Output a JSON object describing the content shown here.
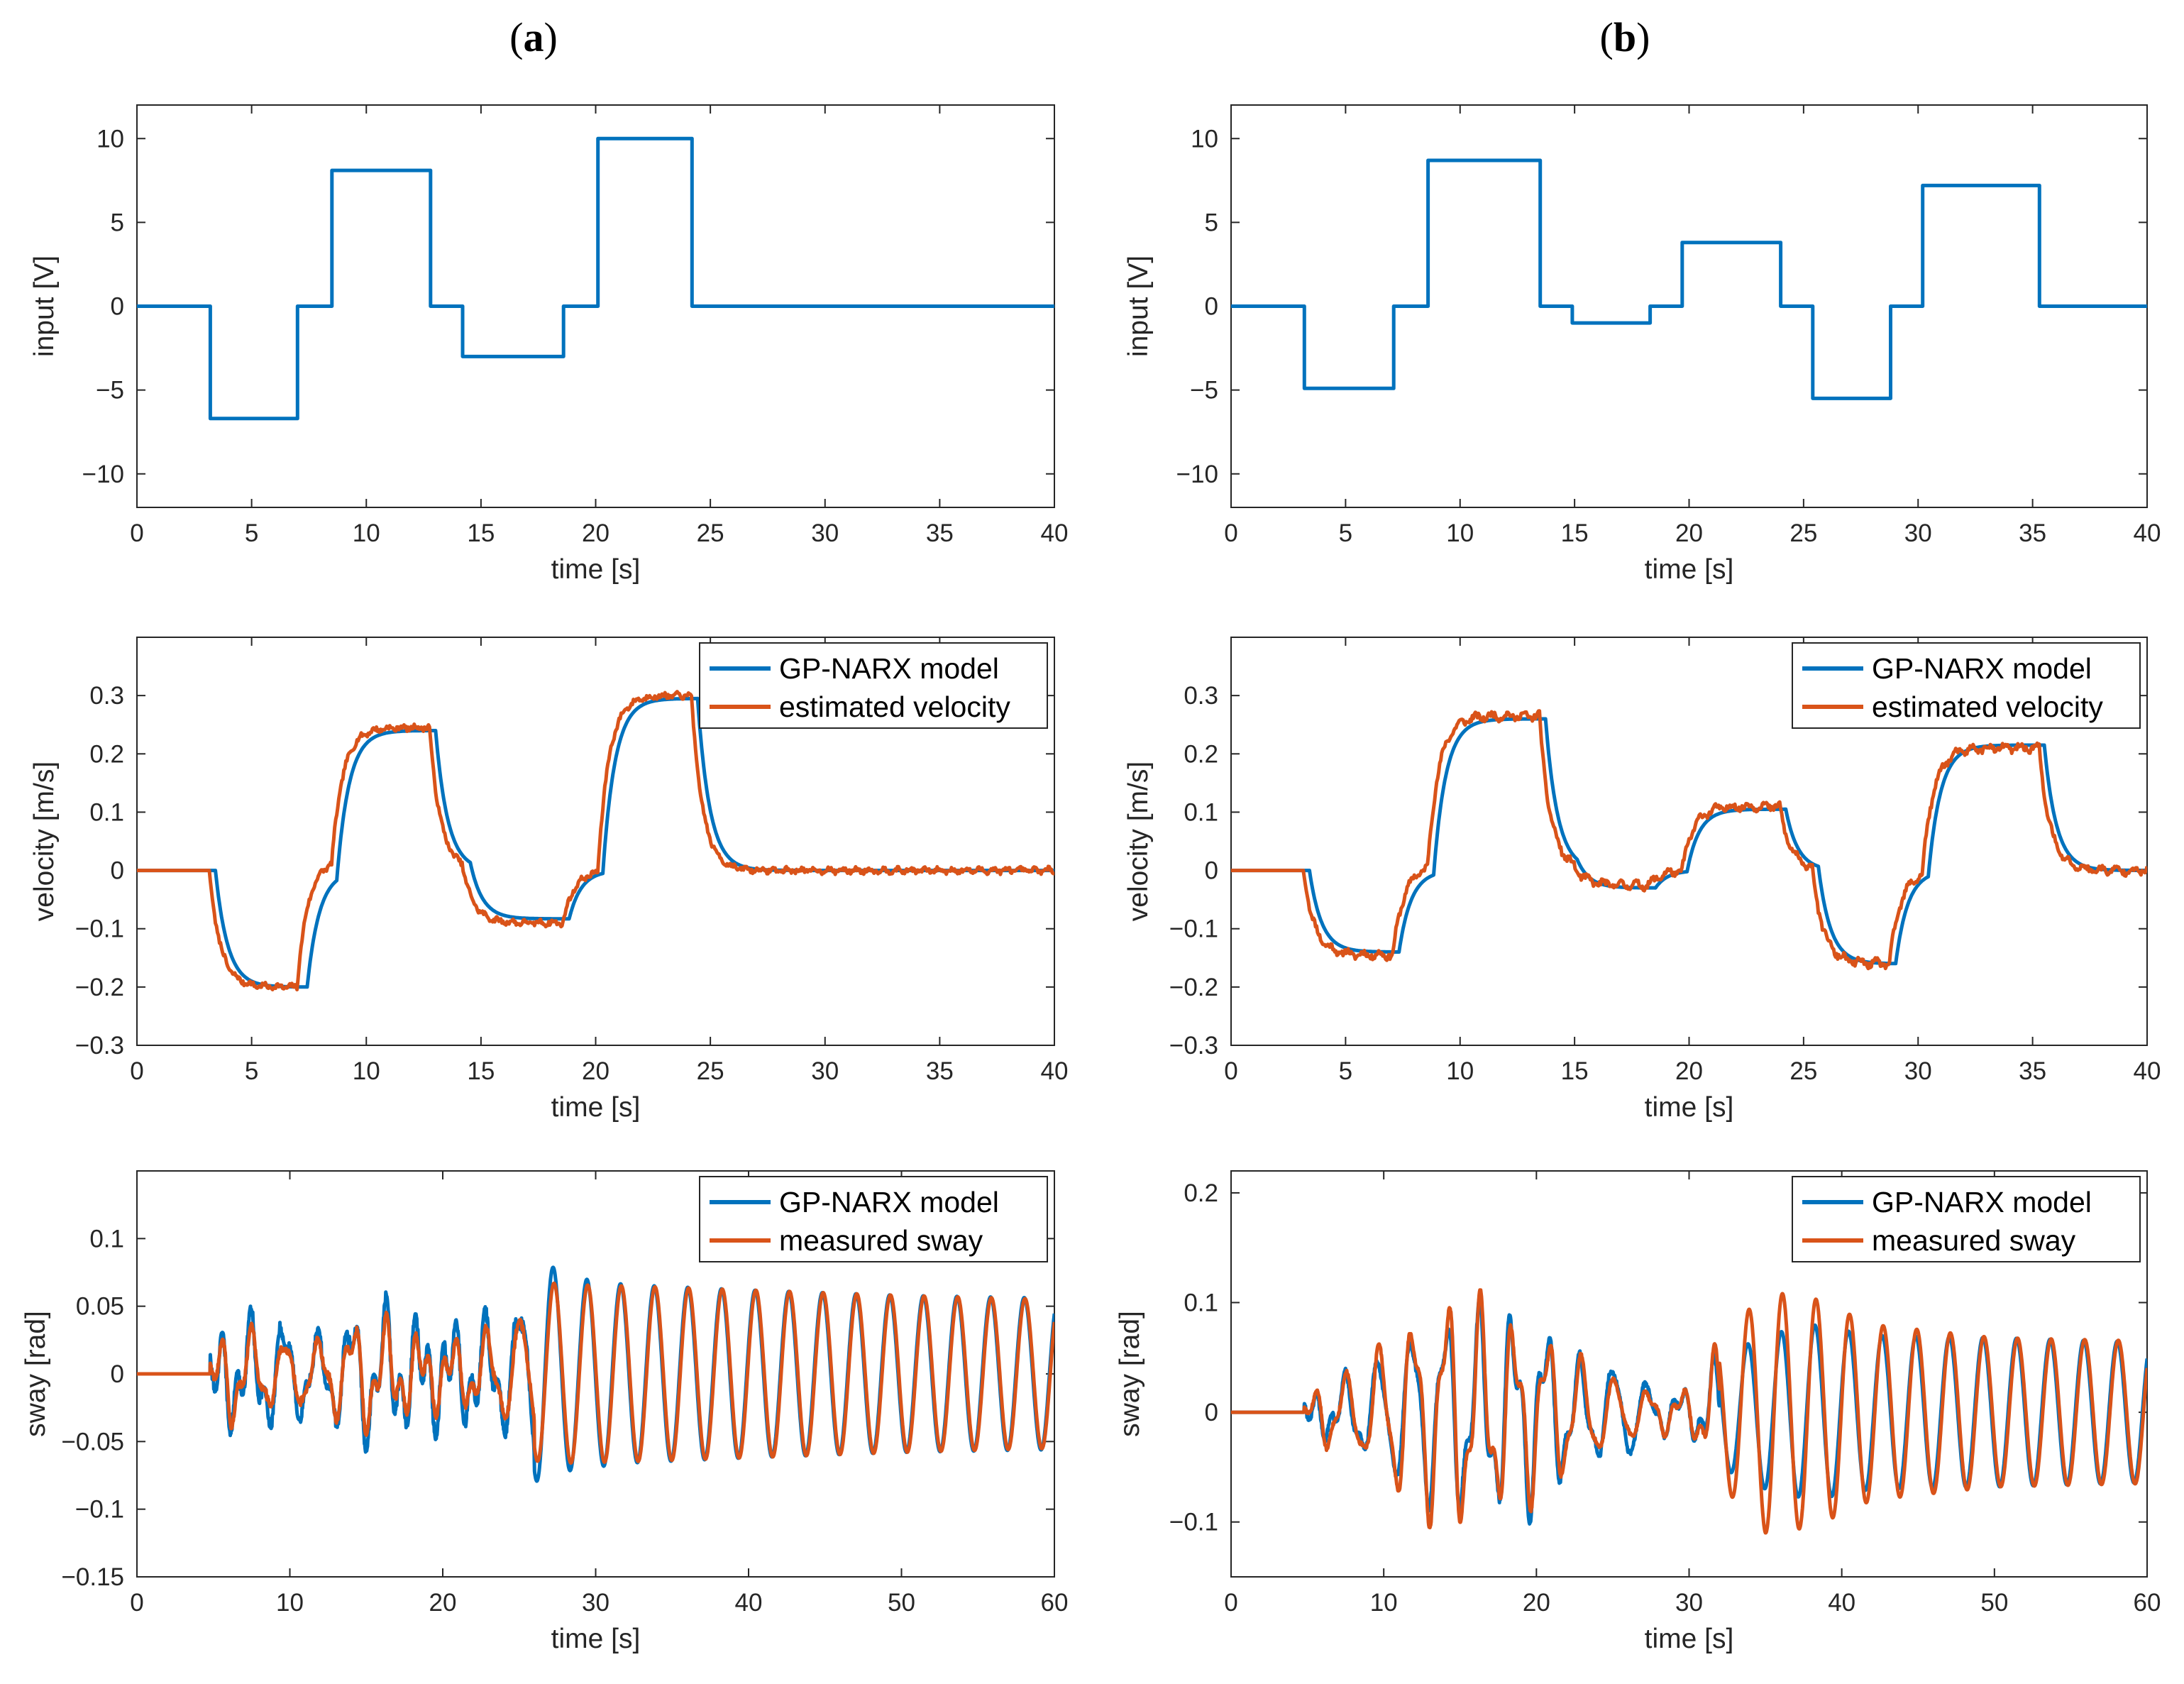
{
  "colors": {
    "model": "#0072BD",
    "measured": "#D95319",
    "axes": "#262626"
  },
  "panels": [
    {
      "key": "a",
      "label_open": "(",
      "label_letter": "a",
      "label_close": ")"
    },
    {
      "key": "b",
      "label_open": "(",
      "label_letter": "b",
      "label_close": ")"
    }
  ],
  "chart_data": [
    {
      "id": "a-input",
      "panel": "a",
      "row": 0,
      "type": "line",
      "xlabel": "time [s]",
      "ylabel": "input [V]",
      "xlim": [
        0,
        40
      ],
      "ylim": [
        -12,
        12
      ],
      "xticks": [
        0,
        5,
        10,
        15,
        20,
        25,
        30,
        35,
        40
      ],
      "yticks": [
        -10,
        -5,
        0,
        5,
        10
      ],
      "ytick_labels": [
        "−10",
        "−5",
        "0",
        "5",
        "10"
      ],
      "series": [
        {
          "name": "input",
          "color": "#0072BD",
          "kind": "step",
          "segments": [
            [
              0,
              3.2,
              0
            ],
            [
              3.2,
              7,
              -6.7
            ],
            [
              7,
              8.5,
              0
            ],
            [
              8.5,
              12.8,
              8.1
            ],
            [
              12.8,
              14.2,
              0
            ],
            [
              14.2,
              18.6,
              -3
            ],
            [
              18.6,
              20.1,
              0
            ],
            [
              20.1,
              24.2,
              10
            ],
            [
              24.2,
              40,
              0
            ]
          ]
        }
      ]
    },
    {
      "id": "b-input",
      "panel": "b",
      "row": 0,
      "type": "line",
      "xlabel": "time [s]",
      "ylabel": "input [V]",
      "xlim": [
        0,
        40
      ],
      "ylim": [
        -12,
        12
      ],
      "xticks": [
        0,
        5,
        10,
        15,
        20,
        25,
        30,
        35,
        40
      ],
      "yticks": [
        -10,
        -5,
        0,
        5,
        10
      ],
      "ytick_labels": [
        "−10",
        "−5",
        "0",
        "5",
        "10"
      ],
      "series": [
        {
          "name": "input",
          "color": "#0072BD",
          "kind": "step",
          "segments": [
            [
              0,
              3.2,
              0
            ],
            [
              3.2,
              7.1,
              -4.9
            ],
            [
              7.1,
              8.6,
              0
            ],
            [
              8.6,
              13.5,
              8.7
            ],
            [
              13.5,
              14.9,
              0
            ],
            [
              14.9,
              18.3,
              -1
            ],
            [
              18.3,
              19.7,
              0
            ],
            [
              19.7,
              24,
              3.8
            ],
            [
              24,
              25.4,
              0
            ],
            [
              25.4,
              28.8,
              -5.5
            ],
            [
              28.8,
              30.2,
              0
            ],
            [
              30.2,
              35.3,
              7.2
            ],
            [
              35.3,
              40,
              0
            ]
          ]
        }
      ]
    },
    {
      "id": "a-velocity",
      "panel": "a",
      "row": 1,
      "type": "line",
      "xlabel": "time [s]",
      "ylabel": "velocity [m/s]",
      "xlim": [
        0,
        40
      ],
      "ylim": [
        -0.3,
        0.4
      ],
      "xticks": [
        0,
        5,
        10,
        15,
        20,
        25,
        30,
        35,
        40
      ],
      "yticks": [
        -0.3,
        -0.2,
        -0.1,
        0,
        0.1,
        0.2,
        0.3
      ],
      "ytick_labels": [
        "−0.3",
        "−0.2",
        "−0.1",
        "0",
        "0.1",
        "0.2",
        "0.3"
      ],
      "legend": {
        "placement": "top-right",
        "entries": [
          "GP-NARX model",
          "estimated velocity"
        ]
      },
      "series": [
        {
          "name": "GP-NARX model",
          "color": "#0072BD",
          "kind": "smoothstep",
          "tau": 0.55,
          "delay": 0.25,
          "steps": [
            [
              0,
              0
            ],
            [
              3.2,
              -0.2
            ],
            [
              7.2,
              0
            ],
            [
              8.5,
              0.24
            ],
            [
              12.8,
              0
            ],
            [
              14.3,
              -0.083
            ],
            [
              18.6,
              0
            ],
            [
              20.1,
              0.295
            ],
            [
              24.2,
              0
            ]
          ]
        },
        {
          "name": "estimated velocity",
          "color": "#D95319",
          "kind": "smoothstep",
          "tau": 0.5,
          "delay": 0.0,
          "noise": 0.004,
          "ripple_amp": 0.003,
          "ripple_period": 0.6,
          "seed": 7,
          "steps": [
            [
              0,
              0
            ],
            [
              3.2,
              -0.2
            ],
            [
              7.0,
              0.02
            ],
            [
              8.5,
              0.245
            ],
            [
              12.8,
              0
            ],
            [
              14.2,
              -0.09
            ],
            [
              18.6,
              0
            ],
            [
              20.1,
              0.3
            ],
            [
              24.2,
              0
            ]
          ]
        }
      ]
    },
    {
      "id": "b-velocity",
      "panel": "b",
      "row": 1,
      "type": "line",
      "xlabel": "time [s]",
      "ylabel": "velocity [m/s]",
      "xlim": [
        0,
        40
      ],
      "ylim": [
        -0.3,
        0.4
      ],
      "xticks": [
        0,
        5,
        10,
        15,
        20,
        25,
        30,
        35,
        40
      ],
      "yticks": [
        -0.3,
        -0.2,
        -0.1,
        0,
        0.1,
        0.2,
        0.3
      ],
      "ytick_labels": [
        "−0.3",
        "−0.2",
        "−0.1",
        "0",
        "0.1",
        "0.2",
        "0.3"
      ],
      "legend": {
        "placement": "top-right",
        "entries": [
          "GP-NARX model",
          "estimated velocity"
        ]
      },
      "series": [
        {
          "name": "GP-NARX model",
          "color": "#0072BD",
          "kind": "smoothstep",
          "tau": 0.55,
          "delay": 0.25,
          "steps": [
            [
              0,
              0
            ],
            [
              3.2,
              -0.14
            ],
            [
              7.1,
              0
            ],
            [
              8.6,
              0.26
            ],
            [
              13.5,
              0
            ],
            [
              14.9,
              -0.03
            ],
            [
              18.3,
              0
            ],
            [
              19.7,
              0.105
            ],
            [
              24,
              0
            ],
            [
              25.4,
              -0.16
            ],
            [
              28.8,
              0
            ],
            [
              30.2,
              0.215
            ],
            [
              35.3,
              0
            ]
          ]
        },
        {
          "name": "estimated velocity",
          "color": "#D95319",
          "kind": "smoothstep",
          "tau": 0.5,
          "delay": 0.0,
          "noise": 0.005,
          "ripple_amp": 0.005,
          "ripple_period": 0.7,
          "seed": 11,
          "steps": [
            [
              0,
              0
            ],
            [
              3.2,
              -0.145
            ],
            [
              7.1,
              0.01
            ],
            [
              8.6,
              0.265
            ],
            [
              13.5,
              0
            ],
            [
              14.9,
              -0.025
            ],
            [
              18.3,
              0
            ],
            [
              19.7,
              0.11
            ],
            [
              24,
              0
            ],
            [
              25.4,
              -0.16
            ],
            [
              28.8,
              0
            ],
            [
              30.2,
              0.21
            ],
            [
              35.3,
              0
            ]
          ]
        }
      ]
    },
    {
      "id": "a-sway",
      "panel": "a",
      "row": 2,
      "type": "line",
      "xlabel": "time [s]",
      "ylabel": "sway [rad]",
      "xlim": [
        0,
        60
      ],
      "ylim": [
        -0.15,
        0.15
      ],
      "xticks": [
        0,
        10,
        20,
        30,
        40,
        50,
        60
      ],
      "yticks": [
        -0.15,
        -0.1,
        -0.05,
        0,
        0.05,
        0.1
      ],
      "ytick_labels": [
        "−0.15",
        "−0.1",
        "−0.05",
        "0",
        "0.05",
        "0.1"
      ],
      "legend": {
        "placement": "top-right",
        "entries": [
          "GP-NARX model",
          "measured sway"
        ]
      },
      "series": [
        {
          "name": "GP-NARX model",
          "color": "#0072BD",
          "kind": "oscillation",
          "start": 4.8,
          "period": 2.2,
          "phase": 0.35,
          "envelope": [
            [
              4.8,
              0
            ],
            [
              6,
              0.034
            ],
            [
              9,
              0.045
            ],
            [
              12,
              0.03
            ],
            [
              15,
              0.055
            ],
            [
              18,
              0.032
            ],
            [
              21,
              0.03
            ],
            [
              24,
              0.045
            ],
            [
              26.5,
              0.085
            ],
            [
              28,
              0.072
            ],
            [
              32,
              0.066
            ],
            [
              40,
              0.062
            ],
            [
              50,
              0.058
            ],
            [
              60,
              0.056
            ]
          ],
          "irregular_until": 26,
          "irregular_amp": 0.018,
          "seed": 3
        },
        {
          "name": "measured sway",
          "color": "#D95319",
          "kind": "oscillation",
          "start": 4.8,
          "period": 2.2,
          "phase": 0.2,
          "envelope": [
            [
              4.8,
              0
            ],
            [
              6,
              0.04
            ],
            [
              9,
              0.028
            ],
            [
              12,
              0.028
            ],
            [
              15,
              0.045
            ],
            [
              18,
              0.025
            ],
            [
              21,
              0.022
            ],
            [
              24,
              0.04
            ],
            [
              26.5,
              0.068
            ],
            [
              28,
              0.066
            ],
            [
              32,
              0.065
            ],
            [
              40,
              0.062
            ],
            [
              50,
              0.058
            ],
            [
              60,
              0.055
            ]
          ],
          "irregular_until": 26,
          "irregular_amp": 0.01,
          "seed": 5
        }
      ]
    },
    {
      "id": "b-sway",
      "panel": "b",
      "row": 2,
      "type": "line",
      "xlabel": "time [s]",
      "ylabel": "sway [rad]",
      "xlim": [
        0,
        60
      ],
      "ylim": [
        -0.15,
        0.22
      ],
      "xticks": [
        0,
        10,
        20,
        30,
        40,
        50,
        60
      ],
      "yticks": [
        -0.1,
        0,
        0.1,
        0.2
      ],
      "ytick_labels": [
        "−0.1",
        "0",
        "0.1",
        "0.2"
      ],
      "legend": {
        "placement": "top-right",
        "entries": [
          "GP-NARX model",
          "measured sway"
        ]
      },
      "series": [
        {
          "name": "GP-NARX model",
          "color": "#0072BD",
          "kind": "oscillation",
          "start": 4.8,
          "period": 2.2,
          "phase": 0.3,
          "envelope": [
            [
              4.8,
              0
            ],
            [
              6,
              0.02
            ],
            [
              8,
              0.04
            ],
            [
              10,
              0.06
            ],
            [
              12,
              0.09
            ],
            [
              15,
              0.1
            ],
            [
              18,
              0.095
            ],
            [
              20,
              0.092
            ],
            [
              23,
              0.05
            ],
            [
              26,
              0.05
            ],
            [
              28,
              0.02
            ],
            [
              30,
              0.02
            ],
            [
              32,
              0.05
            ],
            [
              35,
              0.07
            ],
            [
              38,
              0.08
            ],
            [
              42,
              0.07
            ],
            [
              50,
              0.068
            ],
            [
              60,
              0.064
            ]
          ],
          "irregular_until": 32,
          "irregular_amp": 0.01,
          "seed": 9
        },
        {
          "name": "measured sway",
          "color": "#D95319",
          "kind": "oscillation",
          "start": 4.8,
          "period": 2.2,
          "phase": 0.1,
          "envelope": [
            [
              4.8,
              0
            ],
            [
              6,
              0.035
            ],
            [
              8,
              0.04
            ],
            [
              10,
              0.075
            ],
            [
              12,
              0.1
            ],
            [
              15,
              0.12
            ],
            [
              18,
              0.09
            ],
            [
              20,
              0.085
            ],
            [
              23,
              0.055
            ],
            [
              26,
              0.03
            ],
            [
              28,
              0.02
            ],
            [
              30,
              0.02
            ],
            [
              32,
              0.065
            ],
            [
              35,
              0.11
            ],
            [
              38,
              0.105
            ],
            [
              42,
              0.08
            ],
            [
              50,
              0.068
            ],
            [
              60,
              0.065
            ]
          ],
          "irregular_until": 32,
          "irregular_amp": 0.006,
          "seed": 13
        }
      ]
    }
  ]
}
